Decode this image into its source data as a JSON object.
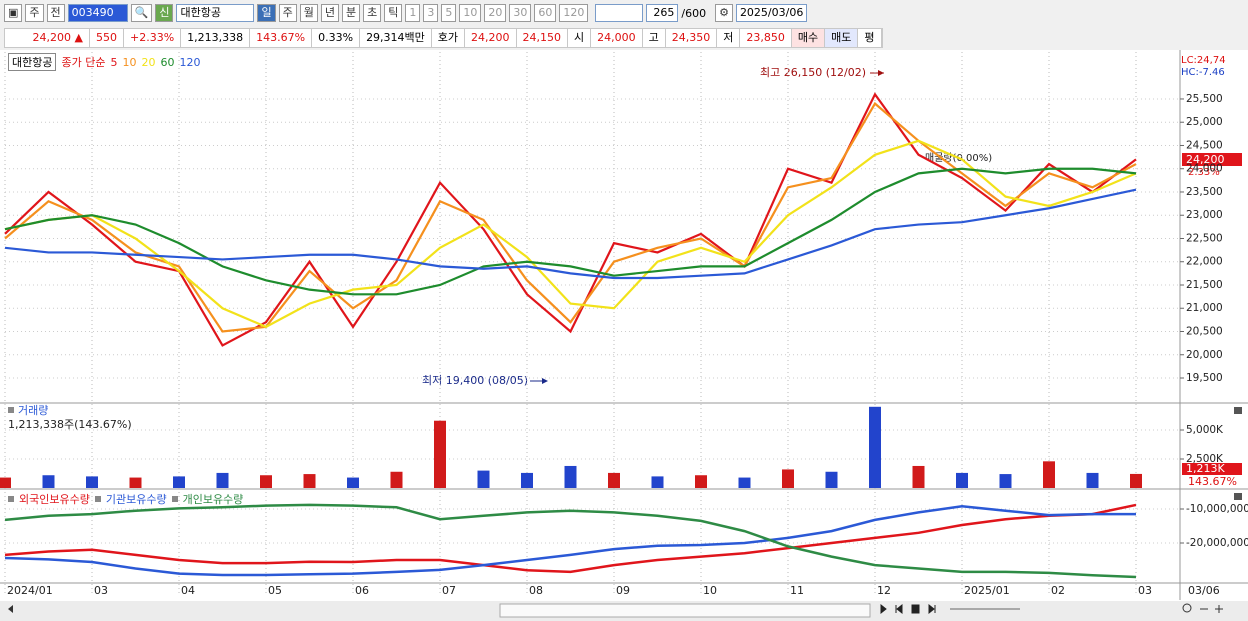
{
  "toolbar": {
    "market": "주",
    "prev": "전",
    "code": "003490",
    "badge": "신",
    "name": "대한항공",
    "periods": [
      "일",
      "주",
      "월",
      "년",
      "분",
      "초",
      "틱"
    ],
    "intervals": [
      "1",
      "3",
      "5",
      "10",
      "20",
      "30",
      "60",
      "120"
    ],
    "count": "265",
    "max": "/600",
    "date": "2025/03/06"
  },
  "quote": {
    "price": "24,200 ▲",
    "change": "550",
    "change_pct": "+2.33%",
    "volume": "1,213,338",
    "volume_ratio": "143.67%",
    "turnover": "0.33%",
    "amount": "29,314백만",
    "ask_label": "호가",
    "ask": "24,200",
    "bid": "24,150",
    "open_label": "시",
    "open": "24,000",
    "high_label": "고",
    "high": "24,350",
    "low_label": "저",
    "low": "23,850",
    "buy": "매수",
    "sell": "매도",
    "avg": "평"
  },
  "chart_data": [
    {
      "type": "line",
      "legend_title": "대한항공",
      "ma_label": "종가 단순",
      "series": [
        {
          "name": "5",
          "color": "#e0151b",
          "values": [
            22600,
            23500,
            22800,
            22000,
            21800,
            20200,
            20700,
            22000,
            20600,
            22000,
            23700,
            22700,
            21300,
            20500,
            22400,
            22200,
            22600,
            21900,
            24000,
            23700,
            25600,
            24300,
            23800,
            23100,
            24100,
            23500,
            24200
          ]
        },
        {
          "name": "10",
          "color": "#f5901e",
          "values": [
            22500,
            23300,
            22900,
            22200,
            21900,
            20500,
            20600,
            21800,
            21000,
            21600,
            23300,
            22900,
            21600,
            20700,
            22000,
            22300,
            22500,
            21900,
            23600,
            23800,
            25400,
            24600,
            23900,
            23200,
            23900,
            23600,
            24100
          ]
        },
        {
          "name": "20",
          "color": "#f2e21a",
          "values": [
            22700,
            22900,
            23000,
            22500,
            21800,
            21000,
            20600,
            21100,
            21400,
            21500,
            22300,
            22800,
            22100,
            21100,
            21000,
            22000,
            22300,
            22000,
            23000,
            23600,
            24300,
            24600,
            24200,
            23400,
            23200,
            23500,
            23900
          ]
        },
        {
          "name": "60",
          "color": "#1e8c2d",
          "values": [
            22700,
            22900,
            23000,
            22800,
            22400,
            21900,
            21600,
            21400,
            21300,
            21300,
            21500,
            21900,
            22000,
            21900,
            21700,
            21800,
            21900,
            21900,
            22400,
            22900,
            23500,
            23900,
            24000,
            23900,
            24000,
            24000,
            23900
          ]
        },
        {
          "name": "120",
          "color": "#2b59d6",
          "values": [
            22300,
            22200,
            22200,
            22150,
            22100,
            22050,
            22100,
            22150,
            22150,
            22050,
            21900,
            21850,
            21900,
            21750,
            21650,
            21650,
            21700,
            21750,
            22050,
            22350,
            22700,
            22800,
            22850,
            23000,
            23150,
            23350,
            23550
          ]
        }
      ],
      "ylim": [
        18984,
        26510
      ],
      "yticks": [
        {
          "value": 19500,
          "label": "19,500"
        },
        {
          "value": 20000,
          "label": "20,000"
        },
        {
          "value": 20500,
          "label": "20,500"
        },
        {
          "value": 21000,
          "label": "21,000"
        },
        {
          "value": 21500,
          "label": "21,500"
        },
        {
          "value": 22000,
          "label": "22,000"
        },
        {
          "value": 22500,
          "label": "22,500"
        },
        {
          "value": 23000,
          "label": "23,000"
        },
        {
          "value": 23500,
          "label": "23,500"
        },
        {
          "value": 24000,
          "label": "24,000"
        },
        {
          "value": 24500,
          "label": "24,500"
        },
        {
          "value": 25000,
          "label": "25,000"
        },
        {
          "value": 25500,
          "label": "25,500"
        }
      ],
      "annotations": [
        "최고 26,150 (12/02)",
        "최저 19,400 (08/05)",
        "매물량(0.00%)"
      ],
      "lc": "LC:24,74",
      "hc": "HC:-7.46",
      "last_price": "24,200",
      "last_pct": "2.33%"
    },
    {
      "type": "bar",
      "title": "거래량",
      "subtitle": "1,213,338주(143.67%)",
      "values": [
        900,
        1100,
        1000,
        900,
        1000,
        1300,
        1100,
        1200,
        900,
        1400,
        5800,
        1500,
        1300,
        1900,
        1300,
        1000,
        1100,
        900,
        1600,
        1400,
        7000,
        1900,
        1300,
        1200,
        2300,
        1300,
        1213
      ],
      "colors": [
        "#d11a1a",
        "#2244cc",
        "#2244cc",
        "#d11a1a",
        "#2244cc",
        "#2244cc",
        "#d11a1a",
        "#d11a1a",
        "#2244cc",
        "#d11a1a",
        "#d11a1a",
        "#2244cc",
        "#2244cc",
        "#2244cc",
        "#d11a1a",
        "#2244cc",
        "#d11a1a",
        "#2244cc",
        "#d11a1a",
        "#2244cc",
        "#2244cc",
        "#d11a1a",
        "#2244cc",
        "#2244cc",
        "#d11a1a",
        "#2244cc",
        "#d11a1a"
      ],
      "ylim": [
        0,
        7155
      ],
      "yticks": [
        {
          "value": 2500,
          "label": "2,500K"
        },
        {
          "value": 5000,
          "label": "5,000K"
        }
      ],
      "last_label": "1,213K",
      "last_pct": "143.67%"
    },
    {
      "type": "line",
      "categories": [
        "2024/01",
        null,
        "03",
        null,
        "04",
        null,
        "05",
        null,
        "06",
        null,
        "07",
        null,
        "08",
        null,
        "09",
        null,
        "10",
        null,
        "11",
        null,
        "12",
        null,
        "2025/01",
        null,
        "02",
        null,
        "03"
      ],
      "x_end_label": "03/06",
      "series": [
        {
          "name": "외국인보유수량",
          "color": "#e0151b",
          "values": [
            -23500000,
            -22500000,
            -22000000,
            -23500000,
            -25000000,
            -25900000,
            -25900000,
            -25500000,
            -25600000,
            -25000000,
            -25000000,
            -26500000,
            -28000000,
            -28500000,
            -26500000,
            -25000000,
            -24000000,
            -23000000,
            -21500000,
            -20000000,
            -18500000,
            -17000000,
            -14700000,
            -13000000,
            -12000000,
            -11500000,
            -8800000
          ]
        },
        {
          "name": "기관보유수량",
          "color": "#2b59d6",
          "values": [
            -24400000,
            -24800000,
            -25600000,
            -27500000,
            -29000000,
            -29400000,
            -29400000,
            -29200000,
            -29000000,
            -28500000,
            -27900000,
            -26500000,
            -25000000,
            -23500000,
            -21800000,
            -20800000,
            -20600000,
            -20000000,
            -18500000,
            -16500000,
            -13200000,
            -11000000,
            -9200000,
            -10500000,
            -11800000,
            -11500000,
            -11500000
          ]
        },
        {
          "name": "개인보유수량",
          "color": "#2e8b45",
          "values": [
            -13200000,
            -12000000,
            -11500000,
            -10500000,
            -9800000,
            -9500000,
            -9000000,
            -8800000,
            -9000000,
            -9500000,
            -13000000,
            -12000000,
            -11000000,
            -10500000,
            -11000000,
            -12000000,
            -13500000,
            -16500000,
            -21000000,
            -24000000,
            -26500000,
            -27500000,
            -28500000,
            -28500000,
            -28800000,
            -29500000,
            -30000000
          ]
        }
      ],
      "ylim": [
        -31470000,
        -4410000
      ],
      "yticks": [
        {
          "value": -20000000,
          "label": "-20,000,000"
        },
        {
          "value": -10000000,
          "label": "-10,000,000"
        }
      ]
    }
  ]
}
